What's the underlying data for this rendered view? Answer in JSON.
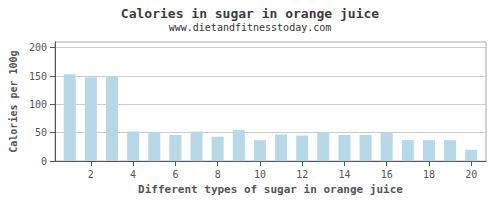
{
  "chart_data": {
    "type": "bar",
    "title": "Calories in sugar in orange juice",
    "subtitle": "www.dietandfitnesstoday.com",
    "xlabel": "Different types of sugar in orange juice",
    "ylabel": "Calories per 100g",
    "x": [
      1,
      2,
      3,
      4,
      5,
      6,
      7,
      8,
      9,
      10,
      11,
      12,
      13,
      14,
      15,
      16,
      17,
      18,
      19,
      20
    ],
    "values": [
      153,
      148,
      149,
      52,
      50,
      46,
      52,
      43,
      55,
      37,
      47,
      45,
      50,
      46,
      46,
      50,
      37,
      37,
      37,
      20
    ],
    "color": "#b8d8e8",
    "xlim": [
      0.3,
      20.7
    ],
    "xticks": [
      2,
      4,
      6,
      8,
      10,
      12,
      14,
      16,
      18,
      20
    ],
    "ylim": [
      0,
      210
    ],
    "yticks": [
      0,
      50,
      100,
      150,
      200
    ],
    "grid": true
  }
}
